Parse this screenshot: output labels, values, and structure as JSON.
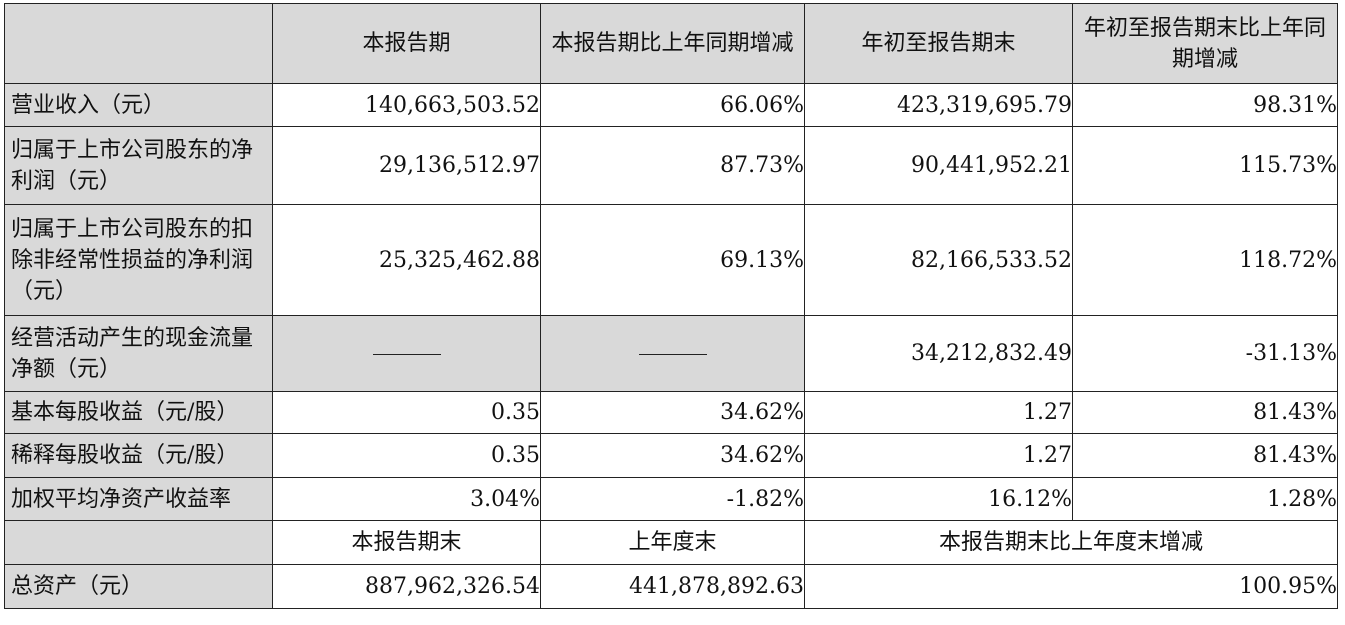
{
  "table": {
    "header": {
      "col1": "本报告期",
      "col2": "本报告期比上年同期增减",
      "col3": "年初至报告期末",
      "col4": "年初至报告期末比上年同期增减"
    },
    "rows": [
      {
        "label": "营业收入（元）",
        "v1": "140,663,503.52",
        "v2": "66.06%",
        "v3": "423,319,695.79",
        "v4": "98.31%"
      },
      {
        "label": "归属于上市公司股东的净利润（元）",
        "v1": "29,136,512.97",
        "v2": "87.73%",
        "v3": "90,441,952.21",
        "v4": "115.73%"
      },
      {
        "label": "归属于上市公司股东的扣除非经常性损益的净利润（元）",
        "v1": "25,325,462.88",
        "v2": "69.13%",
        "v3": "82,166,533.52",
        "v4": "118.72%"
      },
      {
        "label": "经营活动产生的现金流量净额（元）",
        "v1": "——",
        "v2": "——",
        "v3": "34,212,832.49",
        "v4": "-31.13%"
      },
      {
        "label": "基本每股收益（元/股）",
        "v1": "0.35",
        "v2": "34.62%",
        "v3": "1.27",
        "v4": "81.43%"
      },
      {
        "label": "稀释每股收益（元/股）",
        "v1": "0.35",
        "v2": "34.62%",
        "v3": "1.27",
        "v4": "81.43%"
      },
      {
        "label": "加权平均净资产收益率",
        "v1": "3.04%",
        "v2": "-1.82%",
        "v3": "16.12%",
        "v4": "1.28%"
      }
    ],
    "sub_header": {
      "col1": "本报告期末",
      "col2": "上年度末",
      "col3": "本报告期末比上年度末增减"
    },
    "assets": {
      "label": "总资产（元）",
      "v1": "887,962,326.54",
      "v2": "441,878,892.63",
      "v3": "100.95%"
    }
  }
}
